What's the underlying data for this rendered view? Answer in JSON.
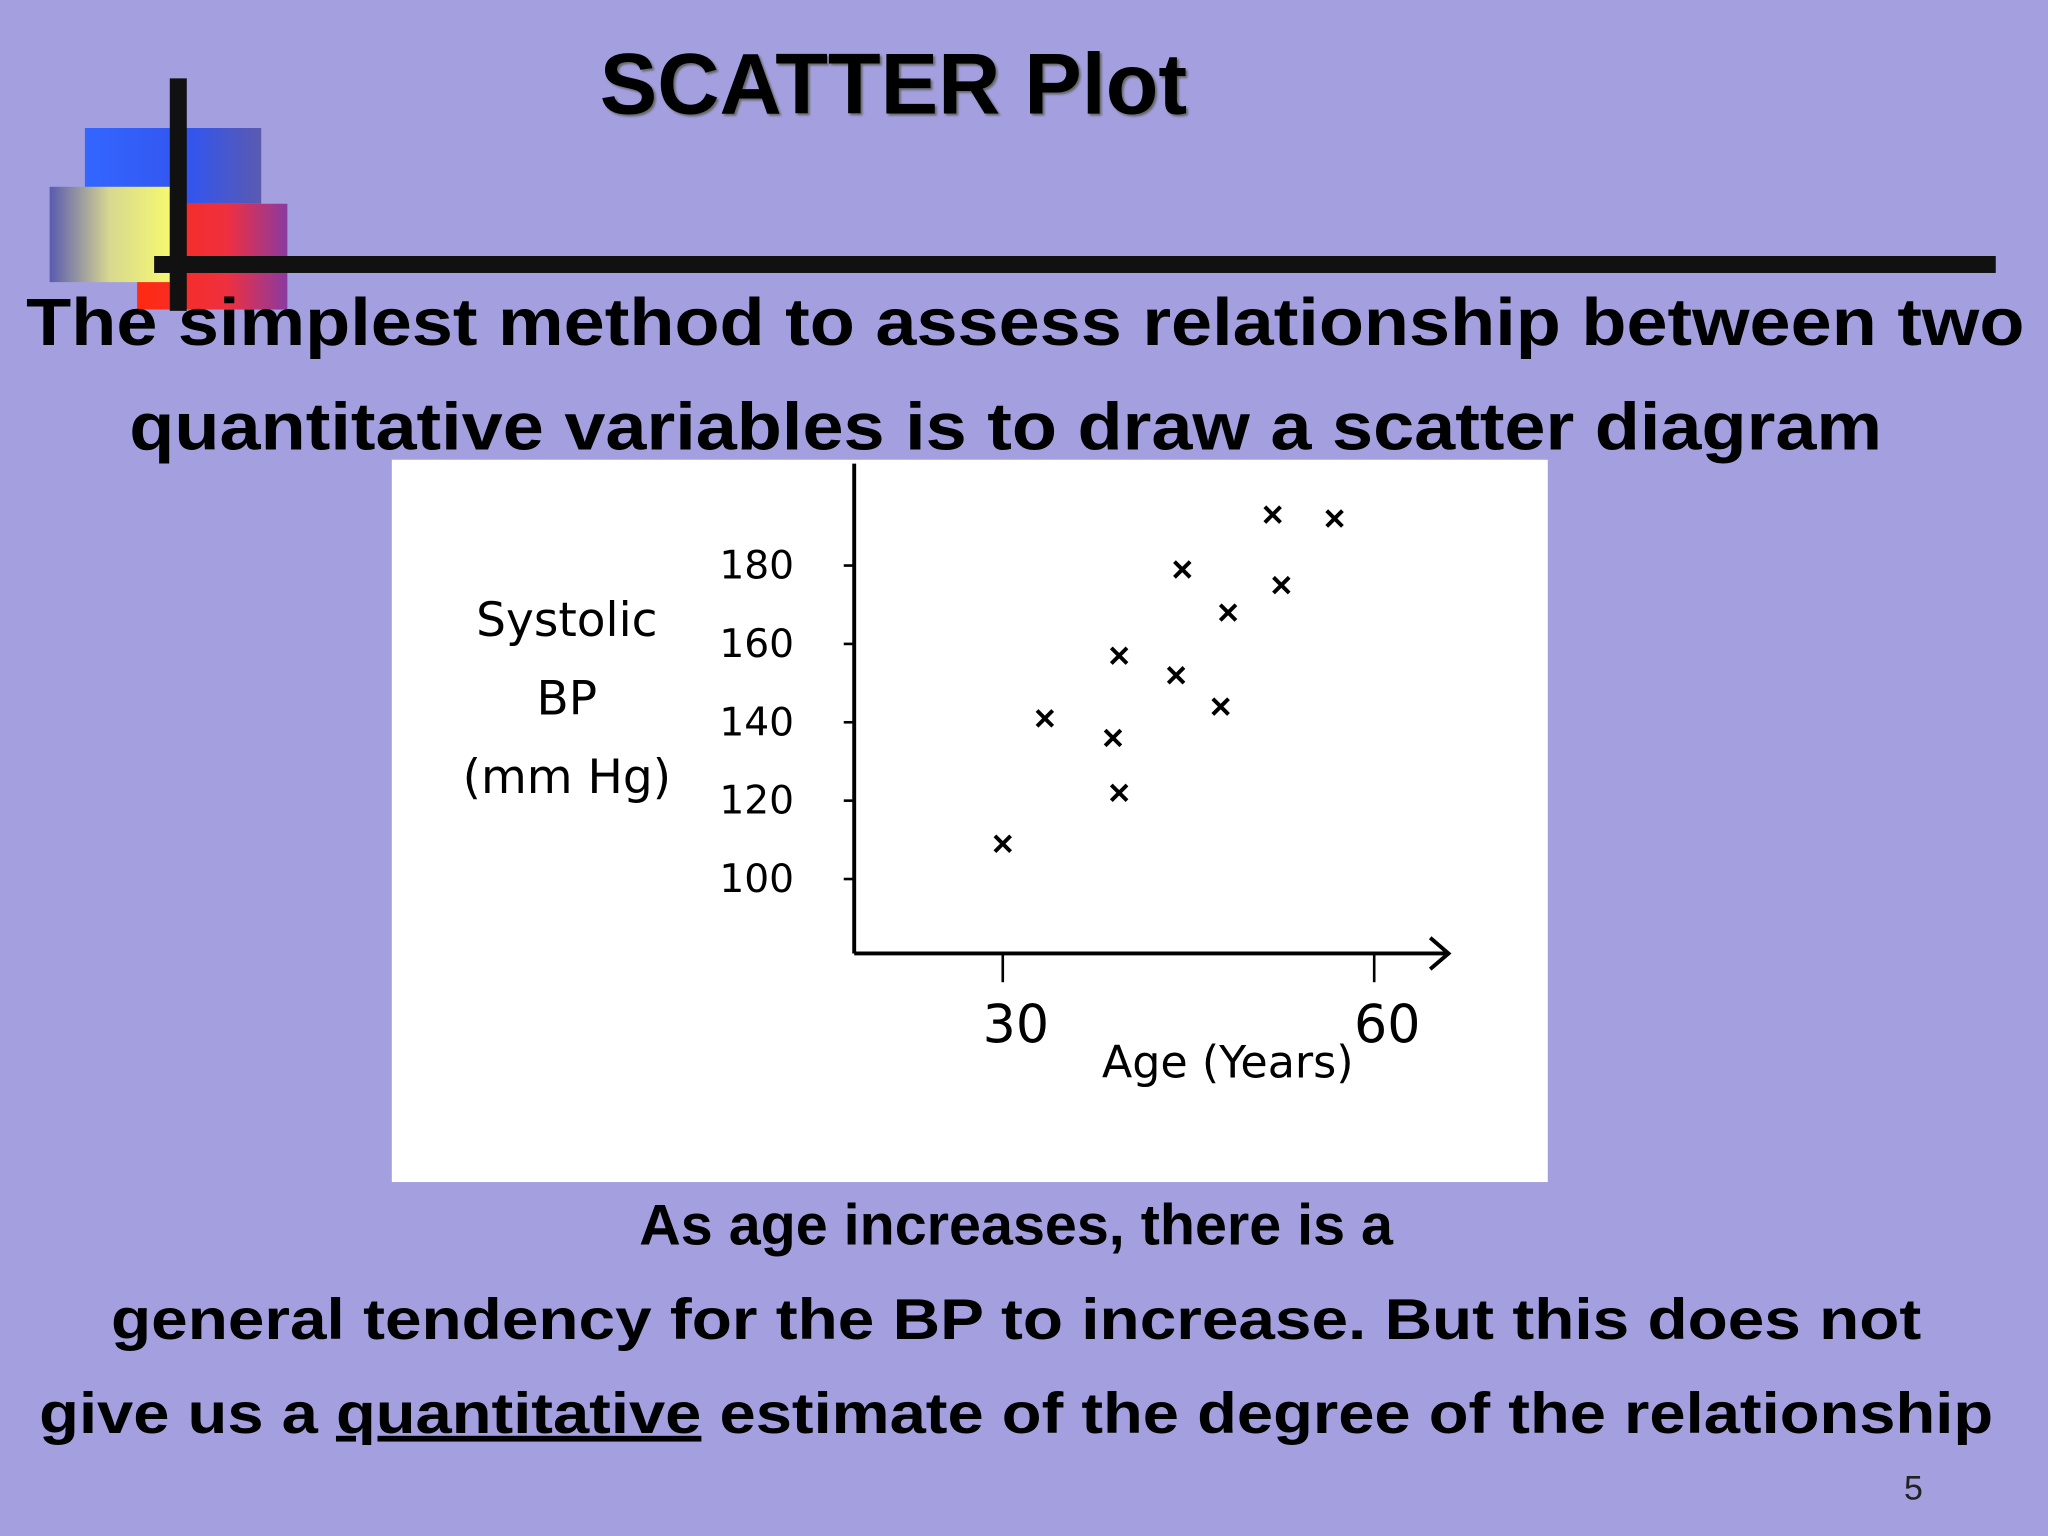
{
  "slide": {
    "title": "SCATTER  Plot",
    "intro": [
      "The simplest method to assess relationship between two",
      "quantitative variables is to draw a scatter diagram"
    ],
    "caption": {
      "line1": "As age increases, there is a",
      "line2": "general tendency for the BP to increase.  But this does not",
      "line3": [
        "give us a ",
        "quantitative",
        " estimate of the degree of the relationship"
      ]
    },
    "page_number": "5"
  },
  "chart_data": {
    "type": "scatter",
    "xlabel": "Age (Years)",
    "ylabel": [
      "Systolic",
      "BP",
      "(mm Hg)"
    ],
    "x": [
      30,
      33.4,
      38.9,
      39.4,
      39.4,
      44,
      44.5,
      47.6,
      48.2,
      51.8,
      52.5,
      56.8
    ],
    "values": [
      109,
      141,
      136,
      122,
      157,
      152,
      179,
      144,
      168,
      193,
      175,
      192
    ],
    "color": "#000000",
    "xlim": [
      18,
      66
    ],
    "xticks": [
      30,
      60
    ],
    "ylim": [
      81,
      206
    ],
    "yticks": [
      100,
      120,
      140,
      160,
      180
    ],
    "grid": false
  }
}
